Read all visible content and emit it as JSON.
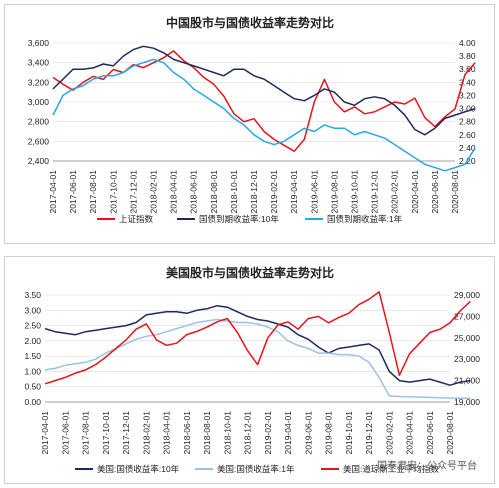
{
  "chart_data": [
    {
      "type": "line",
      "title": "中国股市与国债收益率走势对比",
      "x_ticks": [
        "2017-04-01",
        "2017-06-01",
        "2017-08-01",
        "2017-10-01",
        "2017-12-01",
        "2018-02-01",
        "2018-04-01",
        "2018-06-01",
        "2018-08-01",
        "2018-10-01",
        "2018-12-01",
        "2019-02-01",
        "2019-04-01",
        "2019-06-01",
        "2019-08-01",
        "2019-10-01",
        "2019-12-01",
        "2020-02-01",
        "2020-04-01",
        "2020-06-01",
        "2020-08-01"
      ],
      "y_left": {
        "ticks": [
          "3,600",
          "3,400",
          "3,200",
          "3,000",
          "2,800",
          "2,600",
          "2,400"
        ],
        "lim": [
          2400,
          3600
        ]
      },
      "y_right": {
        "ticks": [
          "4.00",
          "3.80",
          "3.60",
          "3.40",
          "3.20",
          "3.00",
          "2.80",
          "2.60",
          "2.40",
          "2.20"
        ],
        "lim": [
          2.2,
          4.0
        ]
      },
      "series": [
        {
          "name": "上证指数",
          "axis": "left",
          "color": "#e8141b",
          "x": [
            0,
            0.5,
            1,
            1.5,
            2,
            2.5,
            3,
            3.5,
            4,
            4.5,
            5,
            5.5,
            6,
            6.5,
            7,
            7.5,
            8,
            8.5,
            9,
            9.5,
            10,
            10.5,
            11,
            11.5,
            12,
            12.5,
            13,
            13.5,
            14,
            14.5,
            15,
            15.5,
            16,
            16.5,
            17,
            17.5,
            18,
            18.5,
            19,
            19.5,
            20,
            20.5,
            21
          ],
          "y": [
            3250,
            3180,
            3120,
            3200,
            3260,
            3230,
            3330,
            3300,
            3380,
            3350,
            3400,
            3450,
            3520,
            3420,
            3350,
            3250,
            3180,
            3060,
            2880,
            2800,
            2830,
            2700,
            2620,
            2560,
            2500,
            2620,
            3000,
            3230,
            3000,
            2900,
            2950,
            2880,
            2900,
            2950,
            3000,
            2980,
            3040,
            2840,
            2750,
            2850,
            2930,
            3280,
            3400
          ]
        },
        {
          "name": "国债到期收益率:10年",
          "axis": "right",
          "color": "#1f2a5c",
          "x": [
            0,
            0.5,
            1,
            1.5,
            2,
            2.5,
            3,
            3.5,
            4,
            4.5,
            5,
            5.5,
            6,
            6.5,
            7,
            7.5,
            8,
            8.5,
            9,
            9.5,
            10,
            10.5,
            11,
            11.5,
            12,
            12.5,
            13,
            13.5,
            14,
            14.5,
            15,
            15.5,
            16,
            16.5,
            17,
            17.5,
            18,
            18.5,
            19,
            19.5,
            20,
            20.5,
            21
          ],
          "y": [
            3.3,
            3.45,
            3.6,
            3.6,
            3.62,
            3.68,
            3.65,
            3.8,
            3.9,
            3.95,
            3.92,
            3.85,
            3.75,
            3.7,
            3.65,
            3.6,
            3.55,
            3.5,
            3.6,
            3.6,
            3.5,
            3.45,
            3.35,
            3.25,
            3.15,
            3.12,
            3.2,
            3.3,
            3.25,
            3.1,
            3.05,
            3.15,
            3.18,
            3.15,
            3.05,
            2.9,
            2.68,
            2.6,
            2.7,
            2.85,
            2.9,
            2.95,
            3.0
          ]
        },
        {
          "name": "国债到期收益率:1年",
          "axis": "right",
          "color": "#27a9e1",
          "x": [
            0,
            0.5,
            1,
            1.5,
            2,
            2.5,
            3,
            3.5,
            4,
            4.5,
            5,
            5.5,
            6,
            6.5,
            7,
            7.5,
            8,
            8.5,
            9,
            9.5,
            10,
            10.5,
            11,
            11.5,
            12,
            12.5,
            13,
            13.5,
            14,
            14.5,
            15,
            15.5,
            16,
            16.5,
            17,
            17.5,
            18,
            18.5,
            19,
            19.5,
            20,
            20.5,
            21
          ],
          "y": [
            2.9,
            3.2,
            3.3,
            3.35,
            3.45,
            3.5,
            3.5,
            3.55,
            3.65,
            3.7,
            3.75,
            3.7,
            3.55,
            3.45,
            3.3,
            3.2,
            3.1,
            3.0,
            2.85,
            2.75,
            2.6,
            2.5,
            2.45,
            2.5,
            2.6,
            2.7,
            2.65,
            2.75,
            2.7,
            2.7,
            2.6,
            2.65,
            2.6,
            2.55,
            2.45,
            2.35,
            2.25,
            2.15,
            2.1,
            2.05,
            2.1,
            2.15,
            2.4
          ]
        }
      ],
      "legend": {
        "items": [
          "上证指数",
          "国债到期收益率:10年",
          "国债到期收益率:1年"
        ],
        "placement": "bottom"
      }
    },
    {
      "type": "line",
      "title": "美国股市与国债收益率走势对比",
      "x_ticks": [
        "2017-04-01",
        "2017-06-01",
        "2017-08-01",
        "2017-10-01",
        "2017-12-01",
        "2018-02-01",
        "2018-04-01",
        "2018-06-01",
        "2018-08-01",
        "2018-10-01",
        "2018-12-01",
        "2019-02-01",
        "2019-04-01",
        "2019-06-01",
        "2019-08-01",
        "2019-10-01",
        "2019-12-01",
        "2020-02-01",
        "2020-04-01",
        "2020-06-01",
        "2020-08-01"
      ],
      "y_left": {
        "ticks": [
          "3.50",
          "3.00",
          "2.50",
          "2.00",
          "1.50",
          "1.00",
          "0.50",
          "0.00"
        ],
        "lim": [
          0,
          3.5
        ]
      },
      "y_right": {
        "ticks": [
          "29,000",
          "27,000",
          "25,000",
          "23,000",
          "21,000",
          "19,000"
        ],
        "lim": [
          19000,
          29000
        ]
      },
      "series": [
        {
          "name": "美国:国债收益率:10年",
          "axis": "left",
          "color": "#1f2a5c",
          "x": [
            0,
            0.5,
            1,
            1.5,
            2,
            2.5,
            3,
            3.5,
            4,
            4.5,
            5,
            5.5,
            6,
            6.5,
            7,
            7.5,
            8,
            8.5,
            9,
            9.5,
            10,
            10.5,
            11,
            11.5,
            12,
            12.5,
            13,
            13.5,
            14,
            14.5,
            15,
            15.5,
            16,
            16.5,
            17,
            17.5,
            18,
            18.5,
            19,
            19.5,
            20,
            20.5,
            21
          ],
          "y": [
            2.4,
            2.3,
            2.25,
            2.2,
            2.3,
            2.35,
            2.4,
            2.45,
            2.5,
            2.6,
            2.85,
            2.9,
            2.95,
            2.95,
            2.9,
            3.0,
            3.05,
            3.15,
            3.1,
            2.95,
            2.8,
            2.7,
            2.65,
            2.55,
            2.45,
            2.2,
            2.05,
            1.8,
            1.6,
            1.75,
            1.8,
            1.85,
            1.9,
            1.7,
            1.0,
            0.7,
            0.65,
            0.7,
            0.75,
            0.65,
            0.55,
            0.65,
            0.7
          ]
        },
        {
          "name": "美国:国债收益率:1年",
          "axis": "left",
          "color": "#9ac3e3",
          "x": [
            0,
            0.5,
            1,
            1.5,
            2,
            2.5,
            3,
            3.5,
            4,
            4.5,
            5,
            5.5,
            6,
            6.5,
            7,
            7.5,
            8,
            8.5,
            9,
            9.5,
            10,
            10.5,
            11,
            11.5,
            12,
            12.5,
            13,
            13.5,
            14,
            14.5,
            15,
            15.5,
            16,
            16.5,
            17,
            17.5,
            18,
            18.5,
            19,
            19.5,
            20,
            20.5,
            21
          ],
          "y": [
            1.05,
            1.1,
            1.2,
            1.25,
            1.3,
            1.4,
            1.6,
            1.75,
            1.9,
            2.05,
            2.15,
            2.2,
            2.3,
            2.4,
            2.5,
            2.6,
            2.65,
            2.7,
            2.65,
            2.6,
            2.6,
            2.55,
            2.45,
            2.3,
            2.0,
            1.85,
            1.75,
            1.6,
            1.6,
            1.55,
            1.55,
            1.5,
            1.3,
            0.8,
            0.2,
            0.18,
            0.17,
            0.16,
            0.15,
            0.14,
            0.13,
            0.12,
            0.12
          ]
        },
        {
          "name": "美国:道琼斯工业平均指数",
          "axis": "right",
          "color": "#e8141b",
          "x": [
            0,
            0.5,
            1,
            1.5,
            2,
            2.5,
            3,
            3.5,
            4,
            4.5,
            5,
            5.5,
            6,
            6.5,
            7,
            7.5,
            8,
            8.5,
            9,
            9.5,
            10,
            10.5,
            11,
            11.5,
            12,
            12.5,
            13,
            13.5,
            14,
            14.5,
            15,
            15.5,
            16,
            16.5,
            17,
            17.5,
            18,
            18.5,
            19,
            19.5,
            20,
            20.5,
            21
          ],
          "y": [
            20700,
            21000,
            21300,
            21700,
            22000,
            22500,
            23200,
            24000,
            24800,
            25800,
            26300,
            24800,
            24300,
            24500,
            25300,
            25600,
            26000,
            26500,
            26800,
            25500,
            23800,
            22500,
            25000,
            26200,
            26500,
            25800,
            26800,
            27000,
            26400,
            26900,
            27300,
            28100,
            28600,
            29300,
            25500,
            21500,
            23500,
            24500,
            25500,
            25800,
            26400,
            27500,
            28400
          ]
        }
      ],
      "legend": {
        "items": [
          "美国:国债收益率:10年",
          "美国:国债收益率:1年",
          "美国:道琼斯工业平均指数"
        ],
        "placement": "bottom"
      }
    }
  ],
  "watermark": "国泰君安：公众号平台"
}
